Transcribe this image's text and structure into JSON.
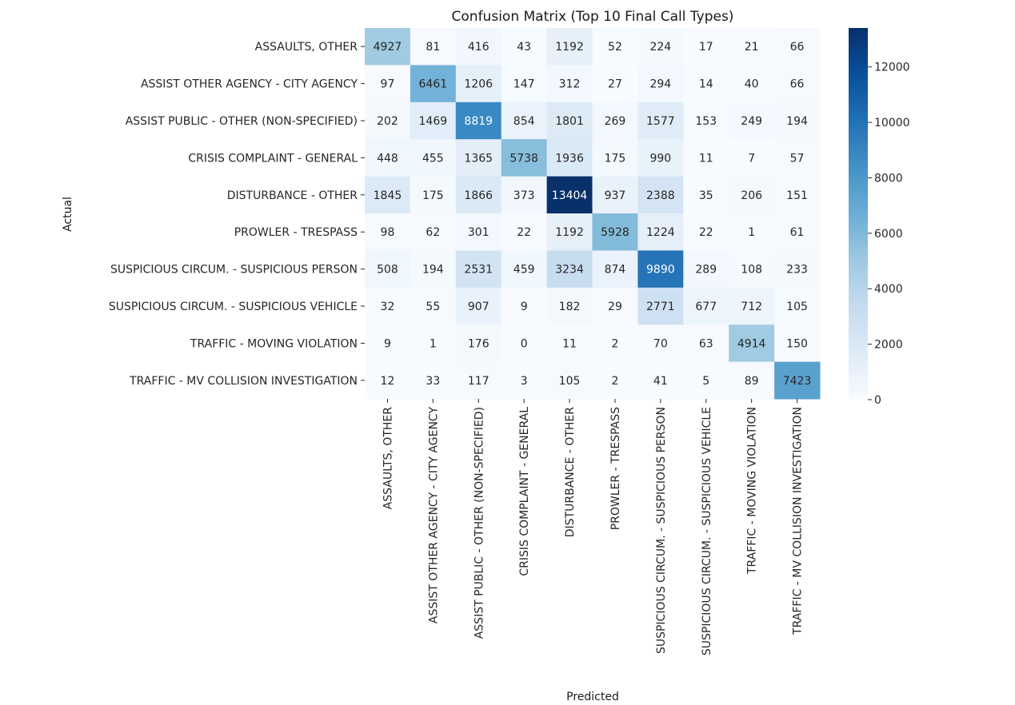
{
  "chart_data": {
    "type": "heatmap",
    "title": "Confusion Matrix (Top 10 Final Call Types)",
    "xlabel": "Predicted",
    "ylabel": "Actual",
    "row_labels": [
      "ASSAULTS, OTHER",
      "ASSIST OTHER AGENCY - CITY AGENCY",
      "ASSIST PUBLIC - OTHER (NON-SPECIFIED)",
      "CRISIS COMPLAINT - GENERAL",
      "DISTURBANCE - OTHER",
      "PROWLER - TRESPASS",
      "SUSPICIOUS CIRCUM. - SUSPICIOUS PERSON",
      "SUSPICIOUS CIRCUM. - SUSPICIOUS VEHICLE",
      "TRAFFIC - MOVING VIOLATION",
      "TRAFFIC - MV COLLISION INVESTIGATION"
    ],
    "col_labels": [
      "ASSAULTS, OTHER",
      "ASSIST OTHER AGENCY - CITY AGENCY",
      "ASSIST PUBLIC - OTHER (NON-SPECIFIED)",
      "CRISIS COMPLAINT - GENERAL",
      "DISTURBANCE - OTHER",
      "PROWLER - TRESPASS",
      "SUSPICIOUS CIRCUM. - SUSPICIOUS PERSON",
      "SUSPICIOUS CIRCUM. - SUSPICIOUS VEHICLE",
      "TRAFFIC - MOVING VIOLATION",
      "TRAFFIC - MV COLLISION INVESTIGATION"
    ],
    "values": [
      [
        4927,
        81,
        416,
        43,
        1192,
        52,
        224,
        17,
        21,
        66
      ],
      [
        97,
        6461,
        1206,
        147,
        312,
        27,
        294,
        14,
        40,
        66
      ],
      [
        202,
        1469,
        8819,
        854,
        1801,
        269,
        1577,
        153,
        249,
        194
      ],
      [
        448,
        455,
        1365,
        5738,
        1936,
        175,
        990,
        11,
        7,
        57
      ],
      [
        1845,
        175,
        1866,
        373,
        13404,
        937,
        2388,
        35,
        206,
        151
      ],
      [
        98,
        62,
        301,
        22,
        1192,
        5928,
        1224,
        22,
        1,
        61
      ],
      [
        508,
        194,
        2531,
        459,
        3234,
        874,
        9890,
        289,
        108,
        233
      ],
      [
        32,
        55,
        907,
        9,
        182,
        29,
        2771,
        677,
        712,
        105
      ],
      [
        9,
        1,
        176,
        0,
        11,
        2,
        70,
        63,
        4914,
        150
      ],
      [
        12,
        33,
        117,
        3,
        105,
        2,
        41,
        5,
        89,
        7423
      ]
    ],
    "colorbar": {
      "colormap": "Blues",
      "range": [
        0,
        13404
      ],
      "ticks": [
        0,
        2000,
        4000,
        6000,
        8000,
        10000,
        12000
      ]
    },
    "colors": {
      "low": "#f7fbff",
      "high": "#08306b"
    },
    "annotations": true,
    "grid": false
  }
}
